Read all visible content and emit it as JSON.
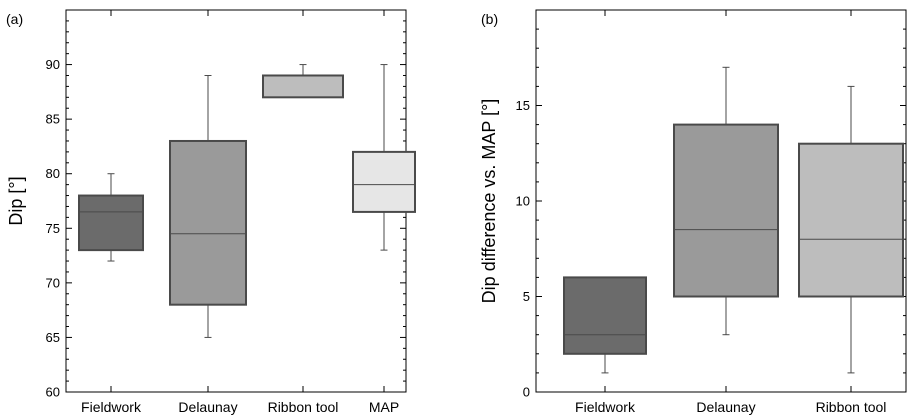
{
  "chart_data": [
    {
      "type": "box",
      "panel_label": "(a)",
      "title": "",
      "xlabel": "",
      "ylabel": "Dip [°]",
      "ylim": [
        60,
        95
      ],
      "yticks": [
        60,
        65,
        70,
        75,
        80,
        85,
        90
      ],
      "yminor_step": 1,
      "grid": false,
      "categories": [
        "Fieldwork",
        "Delaunay",
        "Ribbon tool",
        "MAP"
      ],
      "boxes": [
        {
          "category": "Fieldwork",
          "whisker_low": 72,
          "q1": 73,
          "median": 76.5,
          "q3": 78,
          "whisker_high": 80,
          "color": "#6b6b6b"
        },
        {
          "category": "Delaunay",
          "whisker_low": 65,
          "q1": 68,
          "median": 74.5,
          "q3": 83,
          "whisker_high": 89,
          "color": "#9a9a9a"
        },
        {
          "category": "Ribbon tool",
          "whisker_low": 87,
          "q1": 87,
          "median": 87,
          "q3": 89,
          "whisker_high": 90,
          "color": "#bdbdbd"
        },
        {
          "category": "MAP",
          "whisker_low": 73,
          "q1": 76.5,
          "median": 79,
          "q3": 82,
          "whisker_high": 90,
          "color": "#e6e6e6"
        }
      ]
    },
    {
      "type": "box",
      "panel_label": "(b)",
      "title": "",
      "xlabel": "",
      "ylabel": "Dip difference vs. MAP [°]",
      "ylim": [
        0,
        20
      ],
      "yticks": [
        0,
        5,
        10,
        15
      ],
      "yminor_step": 1,
      "grid": false,
      "categories": [
        "Fieldwork",
        "Delaunay",
        "Ribbon tool"
      ],
      "boxes": [
        {
          "category": "Fieldwork",
          "whisker_low": 1,
          "q1": 2,
          "median": 3,
          "q3": 6,
          "whisker_high": 6,
          "color": "#6b6b6b"
        },
        {
          "category": "Delaunay",
          "whisker_low": 3,
          "q1": 5,
          "median": 8.5,
          "q3": 14,
          "whisker_high": 17,
          "color": "#9a9a9a"
        },
        {
          "category": "Ribbon tool",
          "whisker_low": 1,
          "q1": 5,
          "median": 8,
          "q3": 13,
          "whisker_high": 16,
          "color": "#bdbdbd"
        }
      ]
    }
  ]
}
